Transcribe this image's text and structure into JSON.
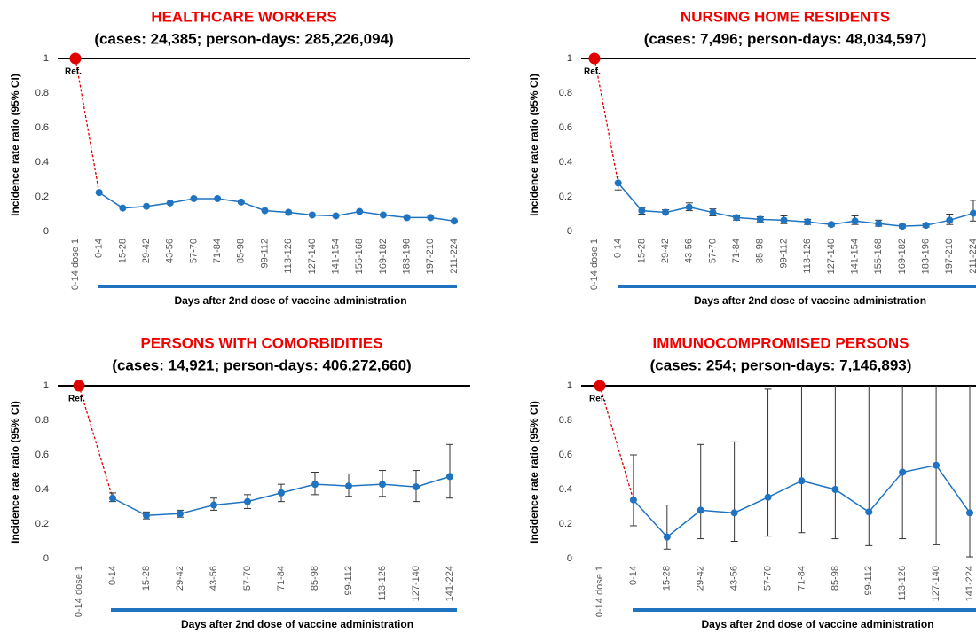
{
  "chart_data": [
    {
      "type": "line",
      "title": "HEALTHCARE WORKERS",
      "subtitle": "(cases: 24,385; person-days:  285,226,094)",
      "y_label": "Incidence rate ratio (95% CI)",
      "x_label": "Days after 2nd dose of vaccine administration",
      "ylim": [
        0,
        1
      ],
      "yticks": [
        0,
        0.2,
        0.4,
        0.6,
        0.8,
        1
      ],
      "reference": {
        "category": "0-14 dose 1",
        "value": 1,
        "label": "Ref.",
        "color": "#e00000"
      },
      "categories": [
        "0-14",
        "15-28",
        "29-42",
        "43-56",
        "57-70",
        "71-84",
        "85-98",
        "99-112",
        "113-126",
        "127-140",
        "141-154",
        "155-168",
        "169-182",
        "183-196",
        "197-210",
        "211-224"
      ],
      "series": [
        {
          "color": "#1f73c0",
          "values": [
            0.225,
            0.135,
            0.145,
            0.165,
            0.19,
            0.19,
            0.17,
            0.12,
            0.11,
            0.095,
            0.09,
            0.115,
            0.095,
            0.08,
            0.08,
            0.06
          ]
        }
      ]
    },
    {
      "type": "line",
      "title": "NURSING HOME RESIDENTS",
      "subtitle": "(cases: 7,496; person-days:  48,034,597)",
      "y_label": "Incidence rate ratio (95% CI)",
      "x_label": "Days after 2nd dose of vaccine administration",
      "ylim": [
        0,
        1
      ],
      "yticks": [
        0,
        0.2,
        0.4,
        0.6,
        0.8,
        1
      ],
      "reference": {
        "category": "0-14 dose 1",
        "value": 1,
        "label": "Ref.",
        "color": "#e00000"
      },
      "categories": [
        "0-14",
        "15-28",
        "29-42",
        "43-56",
        "57-70",
        "71-84",
        "85-98",
        "99-112",
        "113-126",
        "127-140",
        "141-154",
        "155-168",
        "169-182",
        "183-196",
        "197-210",
        "211-224"
      ],
      "series": [
        {
          "color": "#1f73c0",
          "values": [
            0.28,
            0.12,
            0.11,
            0.14,
            0.11,
            0.08,
            0.07,
            0.065,
            0.055,
            0.04,
            0.06,
            0.045,
            0.03,
            0.035,
            0.065,
            0.105
          ],
          "lower": [
            0.24,
            0.1,
            0.095,
            0.12,
            0.09,
            0.065,
            0.055,
            0.045,
            0.04,
            0.03,
            0.04,
            0.03,
            0.02,
            0.025,
            0.04,
            0.06
          ],
          "upper": [
            0.32,
            0.135,
            0.125,
            0.165,
            0.13,
            0.09,
            0.085,
            0.09,
            0.07,
            0.05,
            0.09,
            0.065,
            0.04,
            0.045,
            0.1,
            0.18
          ]
        }
      ]
    },
    {
      "type": "line",
      "title": "PERSONS WITH COMORBIDITIES",
      "subtitle": "(cases: 14,921; person-days:  406,272,660)",
      "y_label": "Incidence rate ratio (95% CI)",
      "x_label": "Days after 2nd dose of vaccine administration",
      "ylim": [
        0,
        1
      ],
      "yticks": [
        0,
        0.2,
        0.4,
        0.6,
        0.8,
        1
      ],
      "reference": {
        "category": "0-14 dose 1",
        "value": 1,
        "label": "Ref.",
        "color": "#e00000"
      },
      "categories": [
        "0-14",
        "15-28",
        "29-42",
        "43-56",
        "57-70",
        "71-84",
        "85-98",
        "99-112",
        "113-126",
        "127-140",
        "141-224"
      ],
      "series": [
        {
          "color": "#1f73c0",
          "values": [
            0.35,
            0.25,
            0.26,
            0.31,
            0.33,
            0.38,
            0.43,
            0.42,
            0.43,
            0.415,
            0.475
          ],
          "lower": [
            0.33,
            0.23,
            0.24,
            0.28,
            0.29,
            0.33,
            0.37,
            0.36,
            0.36,
            0.33,
            0.35
          ],
          "upper": [
            0.38,
            0.27,
            0.28,
            0.35,
            0.37,
            0.43,
            0.5,
            0.49,
            0.51,
            0.51,
            0.66
          ]
        }
      ]
    },
    {
      "type": "line",
      "title": "IMMUNOCOMPROMISED PERSONS",
      "subtitle": "(cases: 254; person-days:  7,146,893)",
      "y_label": "Incidence rate ratio (95% CI)",
      "x_label": "Days after 2nd dose of vaccine administration",
      "ylim": [
        0,
        1
      ],
      "yticks": [
        0,
        0.2,
        0.4,
        0.6,
        0.8,
        1
      ],
      "reference": {
        "category": "0-14 dose 1",
        "value": 1,
        "label": "Ref.",
        "color": "#e00000"
      },
      "categories": [
        "0-14",
        "15-28",
        "29-42",
        "43-56",
        "57-70",
        "71-84",
        "85-98",
        "99-112",
        "113-126",
        "127-140",
        "141-224"
      ],
      "series": [
        {
          "color": "#1f73c0",
          "values": [
            0.34,
            0.125,
            0.28,
            0.265,
            0.355,
            0.45,
            0.4,
            0.27,
            0.5,
            0.54,
            0.265
          ],
          "lower": [
            0.19,
            0.055,
            0.115,
            0.1,
            0.13,
            0.15,
            0.115,
            0.075,
            0.115,
            0.08,
            0.01
          ],
          "upper": [
            0.6,
            0.31,
            0.66,
            0.675,
            0.98,
            1.5,
            1.5,
            1.5,
            1.5,
            1.5,
            1.5
          ]
        }
      ]
    }
  ]
}
